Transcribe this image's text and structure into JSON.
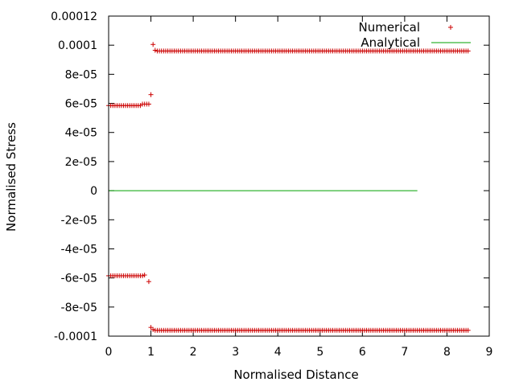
{
  "chart_data": {
    "type": "scatter",
    "xlabel": "Normalised Distance",
    "ylabel": "Normalised Stress",
    "xlim": [
      0,
      9
    ],
    "ylim": [
      -0.0001,
      0.00012
    ],
    "x_ticks": [
      0,
      1,
      2,
      3,
      4,
      5,
      6,
      7,
      8,
      9
    ],
    "x_tick_labels": [
      "0",
      "1",
      "2",
      "3",
      "4",
      "5",
      "6",
      "7",
      "8",
      "9"
    ],
    "y_ticks": [
      -0.0001,
      -8e-05,
      -6e-05,
      -4e-05,
      -2e-05,
      0,
      2e-05,
      4e-05,
      6e-05,
      8e-05,
      0.0001,
      0.00012
    ],
    "y_tick_labels": [
      "-0.0001",
      "-8e-05",
      "-6e-05",
      "-4e-05",
      "-2e-05",
      "0",
      "2e-05",
      "4e-05",
      "6e-05",
      "8e-05",
      "0.0001",
      "0.00012"
    ],
    "grid": false,
    "legend_position": "top-right",
    "series": [
      {
        "name": "Numerical",
        "style": "points",
        "marker": "plus",
        "color": "#cc0000",
        "segments": [
          {
            "x_start": 0.0,
            "x_end": 0.75,
            "step": 0.05,
            "y": 5.85e-05
          },
          {
            "x_start": 0.8,
            "x_end": 0.95,
            "step": 0.05,
            "y": 5.95e-05
          },
          {
            "x_start": 1.0,
            "x_end": 1.0,
            "step": 0.05,
            "y": 6.6e-05
          },
          {
            "x_start": 1.05,
            "x_end": 1.05,
            "step": 0.05,
            "y": 0.0001005
          },
          {
            "x_start": 1.1,
            "x_end": 1.1,
            "step": 0.05,
            "y": 9.65e-05
          },
          {
            "x_start": 1.15,
            "x_end": 8.5,
            "step": 0.05,
            "y": 9.6e-05
          },
          {
            "x_start": 0.0,
            "x_end": 0.8,
            "step": 0.05,
            "y": -5.85e-05
          },
          {
            "x_start": 0.85,
            "x_end": 0.85,
            "step": 0.05,
            "y": -5.8e-05
          },
          {
            "x_start": 0.95,
            "x_end": 0.95,
            "step": 0.05,
            "y": -6.25e-05
          },
          {
            "x_start": 1.0,
            "x_end": 1.0,
            "step": 0.05,
            "y": -9.4e-05
          },
          {
            "x_start": 1.05,
            "x_end": 1.05,
            "step": 0.05,
            "y": -9.55e-05
          },
          {
            "x_start": 1.1,
            "x_end": 8.5,
            "step": 0.05,
            "y": -9.6e-05
          }
        ]
      },
      {
        "name": "Analytical",
        "style": "line",
        "color": "#00a000",
        "x": [
          0,
          7.3
        ],
        "y": [
          0,
          0
        ]
      }
    ]
  }
}
